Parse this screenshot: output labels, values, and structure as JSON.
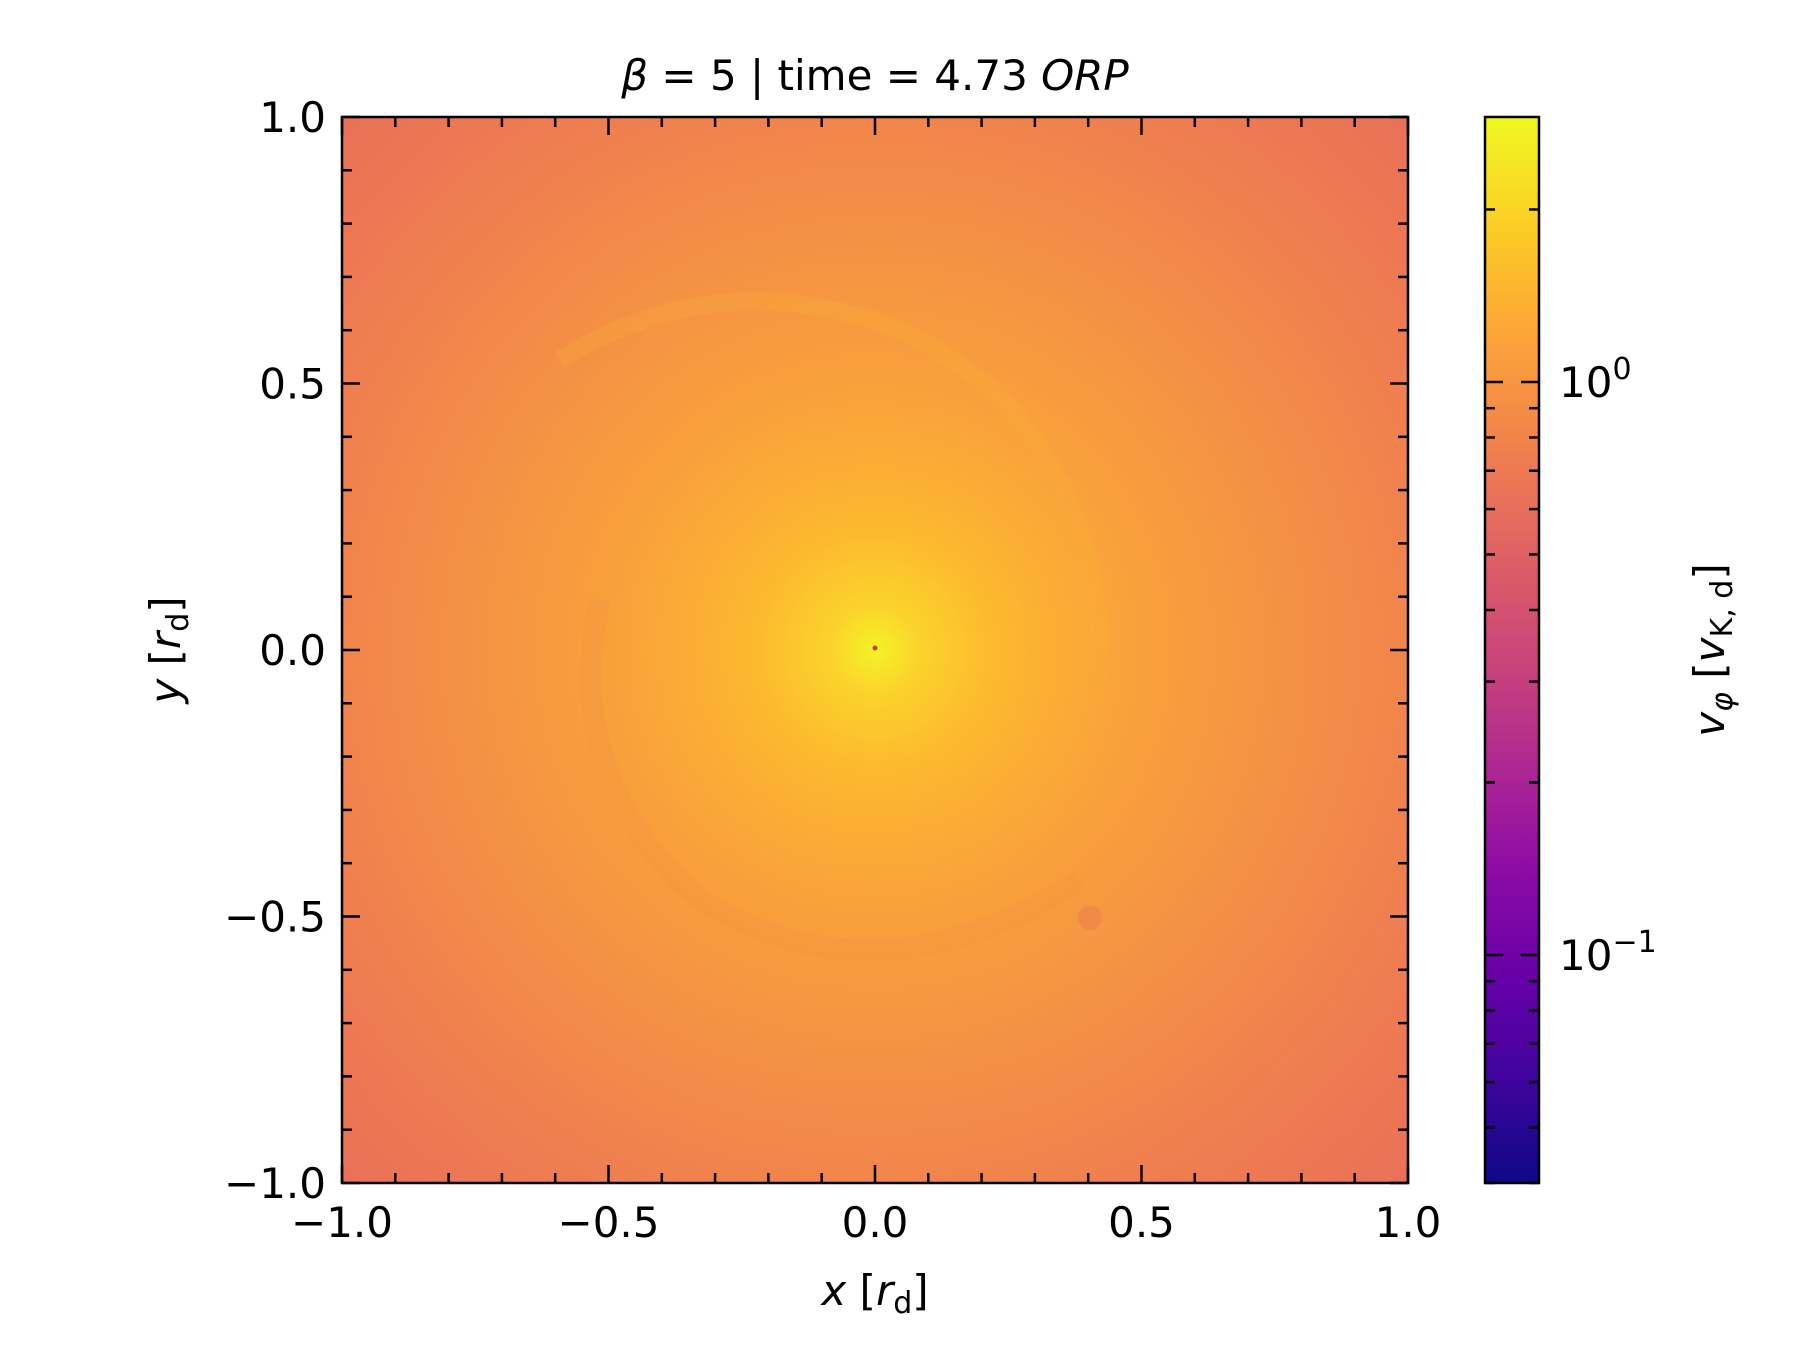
{
  "chart_data": {
    "type": "heatmap",
    "title": {
      "beta_symbol": "β",
      "middle": " = 5 | time = 4.73 ",
      "unit": "ORP"
    },
    "xlabel": {
      "var": "x",
      "open": " [",
      "sym": "r",
      "sub": "d",
      "close": "]"
    },
    "ylabel": {
      "var": "y",
      "open": " [",
      "sym": "r",
      "sub": "d",
      "close": "]"
    },
    "xlim": [
      -1.0,
      1.0
    ],
    "ylim": [
      -1.0,
      1.0
    ],
    "x_ticks": [
      {
        "value": -1.0,
        "label": "−1.0"
      },
      {
        "value": -0.5,
        "label": "−0.5"
      },
      {
        "value": 0.0,
        "label": "0.0"
      },
      {
        "value": 0.5,
        "label": "0.5"
      },
      {
        "value": 1.0,
        "label": "1.0"
      }
    ],
    "y_ticks": [
      {
        "value": -1.0,
        "label": "−1.0"
      },
      {
        "value": -0.5,
        "label": "−0.5"
      },
      {
        "value": 0.0,
        "label": "0.0"
      },
      {
        "value": 0.5,
        "label": "0.5"
      },
      {
        "value": 1.0,
        "label": "1.0"
      }
    ],
    "minor_tick_step": 0.1,
    "colormap": "plasma",
    "colorbar": {
      "scale": "log",
      "range": [
        0.04,
        2.9
      ],
      "ticks": [
        {
          "value": 1.0,
          "base": "10",
          "exp": "0"
        },
        {
          "value": 0.1,
          "base": "10",
          "exp": "−1"
        }
      ],
      "label": {
        "var": "v",
        "sub_var": "φ",
        "open": " [",
        "sym": "v",
        "sub": "K, d",
        "close": "]"
      }
    },
    "field": {
      "center": [
        0.0,
        0.0
      ],
      "peak_value": 2.8,
      "edge_value": 1.0,
      "description_colors": {
        "center": "#f3f024",
        "mid": "#f9a43a",
        "edge": "#ec7854"
      }
    }
  }
}
